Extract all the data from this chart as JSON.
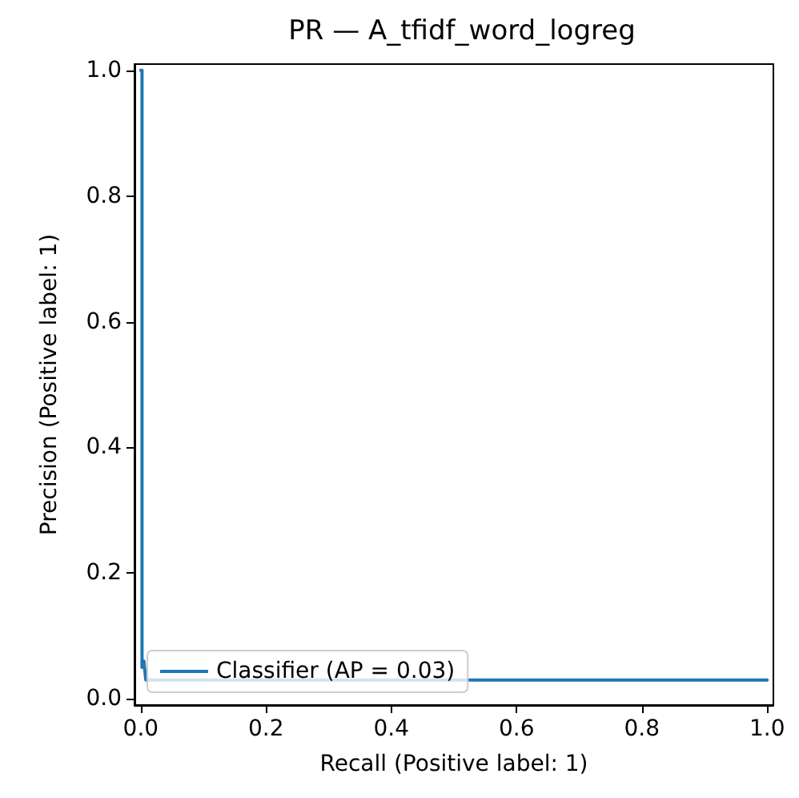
{
  "chart_data": {
    "type": "line",
    "title": "PR — A_tfidf_word_logreg",
    "xlabel": "Recall (Positive label: 1)",
    "ylabel": "Precision (Positive label: 1)",
    "series": [
      {
        "name": "Classifier (AP = 0.03)",
        "color": "#1f77b4",
        "x": [
          0,
          0.002,
          0.002,
          0.005,
          0.008,
          1
        ],
        "values": [
          1,
          1,
          0.05,
          0.06,
          0.03,
          0.03
        ]
      }
    ],
    "xlim": [
      -0.01,
      1.01
    ],
    "ylim": [
      -0.01,
      1.01
    ],
    "xticks": [
      {
        "value": 0,
        "label": "0.0"
      },
      {
        "value": 0.2,
        "label": "0.2"
      },
      {
        "value": 0.4,
        "label": "0.4"
      },
      {
        "value": 0.6,
        "label": "0.6"
      },
      {
        "value": 0.8,
        "label": "0.8"
      },
      {
        "value": 1,
        "label": "1.0"
      }
    ],
    "yticks": [
      {
        "value": 0,
        "label": "0.0"
      },
      {
        "value": 0.2,
        "label": "0.2"
      },
      {
        "value": 0.4,
        "label": "0.4"
      },
      {
        "value": 0.6,
        "label": "0.6"
      },
      {
        "value": 0.8,
        "label": "0.8"
      },
      {
        "value": 1,
        "label": "1.0"
      }
    ],
    "grid": false,
    "legend": "bottom left",
    "marker": "none",
    "line_style": "solid"
  }
}
